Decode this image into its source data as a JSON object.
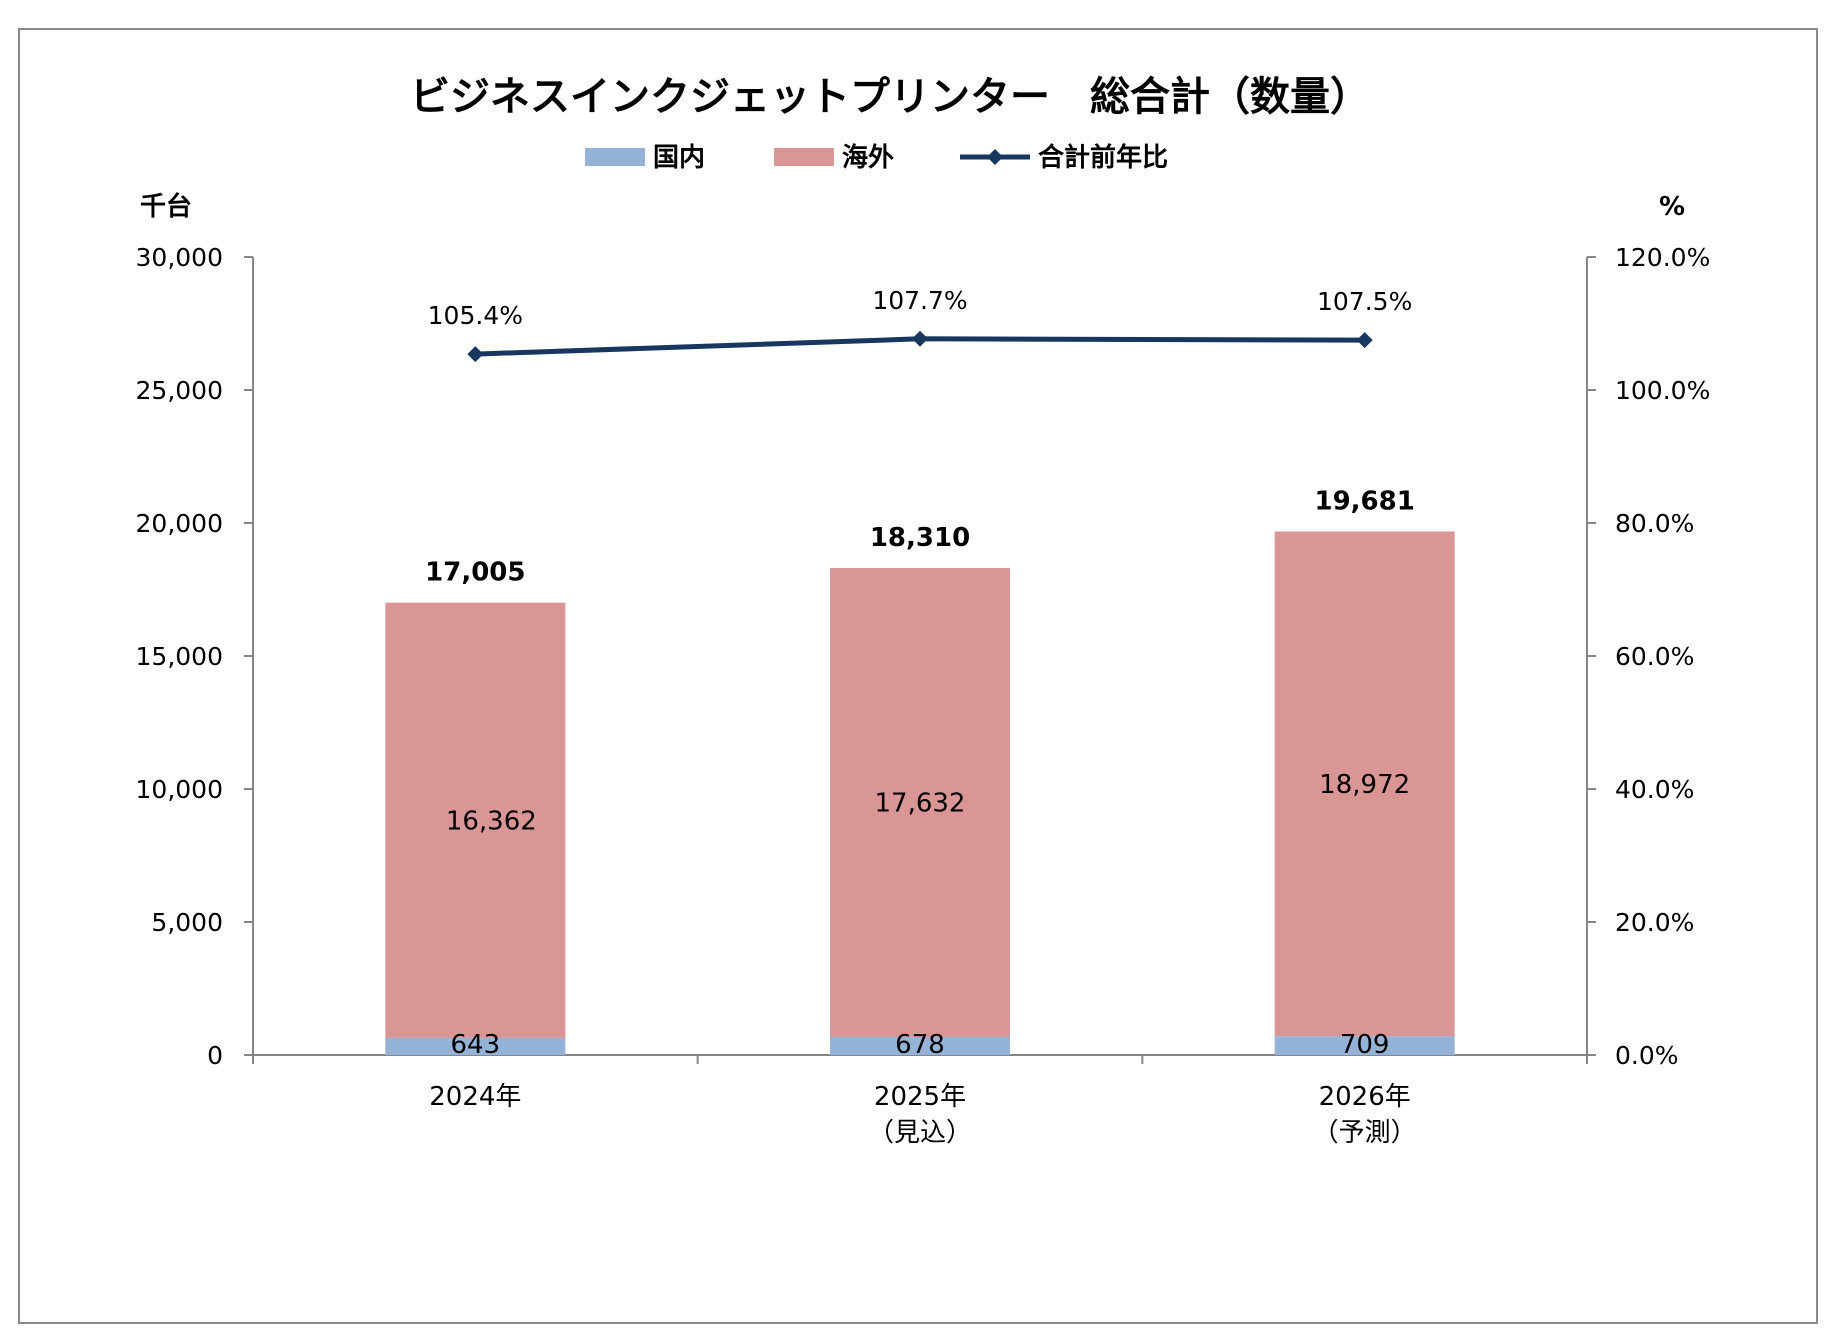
{
  "chart_data": {
    "type": "bar",
    "stacked": true,
    "title": "ビジネスインクジェットプリンター　総合計（数量）",
    "categories": [
      "2024年",
      "2025年\n（見込）",
      "2026年\n（予測）"
    ],
    "series": [
      {
        "name": "国内",
        "values": [
          643,
          678,
          709
        ],
        "color": "#95b3d7"
      },
      {
        "name": "海外",
        "values": [
          16362,
          17632,
          18972
        ],
        "color": "#d99694"
      }
    ],
    "line_series": {
      "name": "合計前年比",
      "values": [
        105.4,
        107.7,
        107.5
      ],
      "labels": [
        "105.4%",
        "107.7%",
        "107.5%"
      ],
      "color": "#17375e",
      "axis": "right"
    },
    "totals": [
      17005,
      18310,
      19681
    ],
    "total_labels": [
      "17,005",
      "18,310",
      "19,681"
    ],
    "segment_labels": {
      "国内": [
        "643",
        "678",
        "709"
      ],
      "海外": [
        "16,362",
        "17,632",
        "18,972"
      ]
    },
    "y_left": {
      "unit": "千台",
      "ylim": [
        0,
        30000
      ],
      "ticks": [
        0,
        5000,
        10000,
        15000,
        20000,
        25000,
        30000
      ],
      "tick_labels": [
        "0",
        "5,000",
        "10,000",
        "15,000",
        "20,000",
        "25,000",
        "30,000"
      ]
    },
    "y_right": {
      "unit": "%",
      "ylim": [
        0,
        120
      ],
      "ticks": [
        0,
        20,
        40,
        60,
        80,
        100,
        120
      ],
      "tick_labels": [
        "0.0%",
        "20.0%",
        "40.0%",
        "60.0%",
        "80.0%",
        "100.0%",
        "120.0%"
      ]
    },
    "legend_position": "top",
    "grid": false
  }
}
